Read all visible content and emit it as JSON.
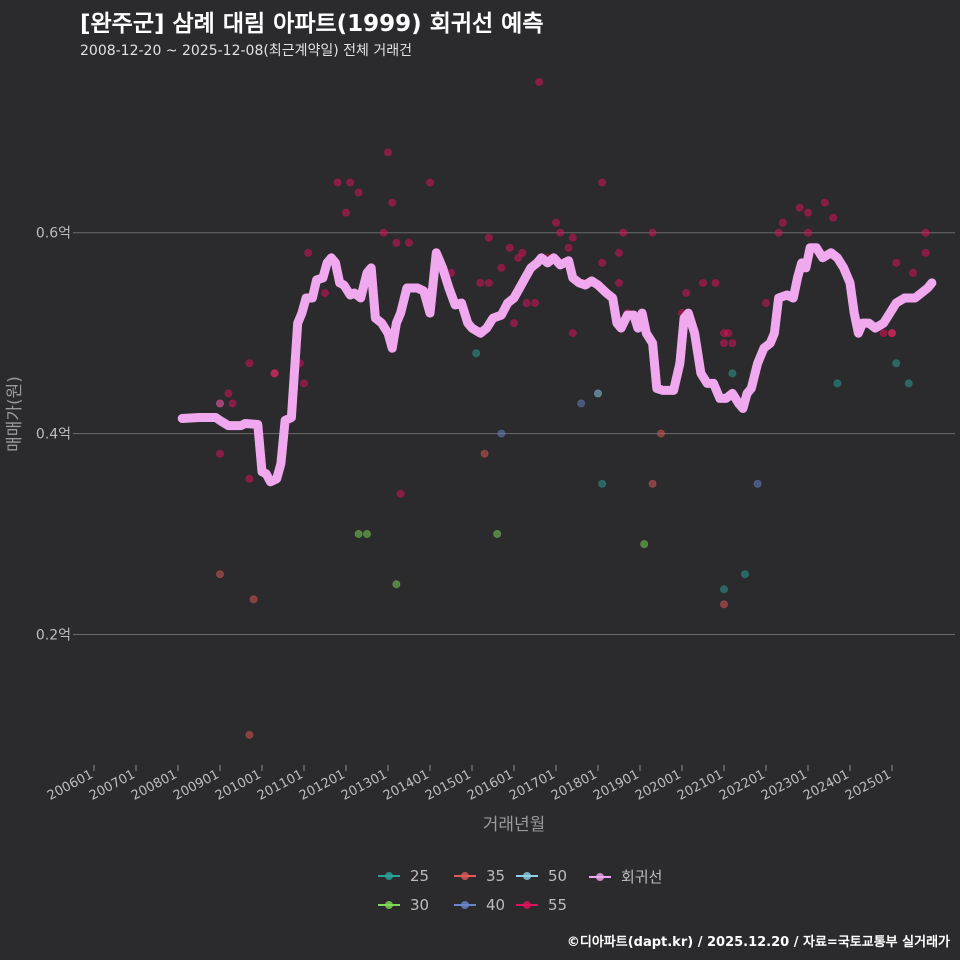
{
  "title": "[완주군] 삼례 대림 아파트(1999) 회귀선 예측",
  "subtitle": "2008-12-20 ~ 2025-12-08(최근계약일) 전체 거래건",
  "footer": "©디아파트(dapt.kr) / 2025.12.20 / 자료=국토교통부 실거래가",
  "chart_data": {
    "type": "scatter",
    "xlabel": "거래년월",
    "ylabel": "매매가(원)",
    "x_range": [
      2005.5,
      2026.5
    ],
    "ylim": [
      0.07,
      0.77
    ],
    "x_ticks": [
      {
        "value": 2006,
        "label": "200601"
      },
      {
        "value": 2007,
        "label": "200701"
      },
      {
        "value": 2008,
        "label": "200801"
      },
      {
        "value": 2009,
        "label": "200901"
      },
      {
        "value": 2010,
        "label": "201001"
      },
      {
        "value": 2011,
        "label": "201101"
      },
      {
        "value": 2012,
        "label": "201201"
      },
      {
        "value": 2013,
        "label": "201301"
      },
      {
        "value": 2014,
        "label": "201401"
      },
      {
        "value": 2015,
        "label": "201501"
      },
      {
        "value": 2016,
        "label": "201601"
      },
      {
        "value": 2017,
        "label": "201701"
      },
      {
        "value": 2018,
        "label": "201801"
      },
      {
        "value": 2019,
        "label": "201901"
      },
      {
        "value": 2020,
        "label": "202001"
      },
      {
        "value": 2021,
        "label": "202101"
      },
      {
        "value": 2022,
        "label": "202201"
      },
      {
        "value": 2023,
        "label": "202301"
      },
      {
        "value": 2024,
        "label": "202401"
      },
      {
        "value": 2025,
        "label": "202501"
      }
    ],
    "y_ticks": [
      {
        "value": 0.2,
        "label": "0.2억"
      },
      {
        "value": 0.4,
        "label": "0.4억"
      },
      {
        "value": 0.6,
        "label": "0.6억"
      }
    ],
    "legend": [
      {
        "name": "25",
        "color": "#2aa198"
      },
      {
        "name": "30",
        "color": "#7ed957"
      },
      {
        "name": "35",
        "color": "#e05a5a"
      },
      {
        "name": "40",
        "color": "#6b86c9"
      },
      {
        "name": "50",
        "color": "#8fd0e8"
      },
      {
        "name": "55",
        "color": "#e0115f"
      },
      {
        "name": "회귀선",
        "color": "#f0a8ee"
      }
    ],
    "series": [
      {
        "name": "25",
        "color": "#2aa198",
        "points": [
          [
            2015.1,
            0.48
          ],
          [
            2018.1,
            0.35
          ],
          [
            2021.2,
            0.46
          ],
          [
            2021.0,
            0.245
          ],
          [
            2021.5,
            0.26
          ],
          [
            2023.7,
            0.45
          ],
          [
            2025.1,
            0.47
          ],
          [
            2025.4,
            0.45
          ]
        ]
      },
      {
        "name": "30",
        "color": "#7ed957",
        "points": [
          [
            2012.3,
            0.3
          ],
          [
            2012.5,
            0.3
          ],
          [
            2013.2,
            0.25
          ],
          [
            2015.6,
            0.3
          ],
          [
            2019.1,
            0.29
          ]
        ]
      },
      {
        "name": "35",
        "color": "#e05a5a",
        "points": [
          [
            2009.0,
            0.26
          ],
          [
            2009.8,
            0.235
          ],
          [
            2009.7,
            0.1
          ],
          [
            2010.3,
            0.46
          ],
          [
            2015.3,
            0.38
          ],
          [
            2019.3,
            0.35
          ],
          [
            2019.5,
            0.4
          ],
          [
            2021.0,
            0.23
          ],
          [
            2025.0,
            0.5
          ]
        ]
      },
      {
        "name": "40",
        "color": "#6b86c9",
        "points": [
          [
            2015.7,
            0.4
          ],
          [
            2017.6,
            0.43
          ],
          [
            2021.8,
            0.35
          ]
        ]
      },
      {
        "name": "50",
        "color": "#8fd0e8",
        "points": [
          [
            2009.0,
            0.43
          ],
          [
            2018.0,
            0.44
          ]
        ]
      },
      {
        "name": "55",
        "color": "#e0115f",
        "points": [
          [
            2009.0,
            0.43
          ],
          [
            2009.0,
            0.38
          ],
          [
            2009.2,
            0.44
          ],
          [
            2009.3,
            0.43
          ],
          [
            2009.7,
            0.47
          ],
          [
            2009.7,
            0.355
          ],
          [
            2010.3,
            0.46
          ],
          [
            2010.9,
            0.47
          ],
          [
            2011.0,
            0.45
          ],
          [
            2011.1,
            0.58
          ],
          [
            2011.5,
            0.54
          ],
          [
            2011.8,
            0.65
          ],
          [
            2012.0,
            0.62
          ],
          [
            2012.1,
            0.65
          ],
          [
            2012.3,
            0.64
          ],
          [
            2012.5,
            0.55
          ],
          [
            2012.9,
            0.6
          ],
          [
            2013.0,
            0.68
          ],
          [
            2013.1,
            0.63
          ],
          [
            2013.2,
            0.59
          ],
          [
            2013.5,
            0.59
          ],
          [
            2013.3,
            0.34
          ],
          [
            2014.0,
            0.65
          ],
          [
            2014.2,
            0.57
          ],
          [
            2014.5,
            0.56
          ],
          [
            2015.2,
            0.55
          ],
          [
            2015.4,
            0.55
          ],
          [
            2015.4,
            0.595
          ],
          [
            2015.7,
            0.565
          ],
          [
            2015.9,
            0.585
          ],
          [
            2016.0,
            0.51
          ],
          [
            2016.1,
            0.575
          ],
          [
            2016.2,
            0.58
          ],
          [
            2016.3,
            0.53
          ],
          [
            2016.5,
            0.53
          ],
          [
            2016.6,
            0.75
          ],
          [
            2016.8,
            0.575
          ],
          [
            2017.0,
            0.61
          ],
          [
            2017.1,
            0.6
          ],
          [
            2017.3,
            0.585
          ],
          [
            2017.4,
            0.5
          ],
          [
            2017.4,
            0.595
          ],
          [
            2017.7,
            0.55
          ],
          [
            2018.1,
            0.57
          ],
          [
            2018.1,
            0.65
          ],
          [
            2018.5,
            0.55
          ],
          [
            2018.5,
            0.58
          ],
          [
            2018.6,
            0.6
          ],
          [
            2018.7,
            0.52
          ],
          [
            2019.3,
            0.6
          ],
          [
            2020.0,
            0.52
          ],
          [
            2020.1,
            0.54
          ],
          [
            2020.5,
            0.55
          ],
          [
            2020.8,
            0.55
          ],
          [
            2021.0,
            0.5
          ],
          [
            2021.0,
            0.49
          ],
          [
            2021.1,
            0.5
          ],
          [
            2021.2,
            0.49
          ],
          [
            2022.0,
            0.53
          ],
          [
            2022.3,
            0.6
          ],
          [
            2022.4,
            0.61
          ],
          [
            2022.8,
            0.625
          ],
          [
            2023.0,
            0.6
          ],
          [
            2023.0,
            0.62
          ],
          [
            2023.4,
            0.63
          ],
          [
            2023.6,
            0.615
          ],
          [
            2024.8,
            0.5
          ],
          [
            2025.0,
            0.5
          ],
          [
            2025.1,
            0.57
          ],
          [
            2025.5,
            0.56
          ],
          [
            2025.8,
            0.6
          ],
          [
            2025.8,
            0.58
          ]
        ]
      }
    ],
    "regression": {
      "name": "회귀선",
      "color": "#f0a8ee",
      "points": [
        [
          2008.1,
          0.415
        ],
        [
          2008.5,
          0.416
        ],
        [
          2008.9,
          0.416
        ],
        [
          2009.0,
          0.413
        ],
        [
          2009.2,
          0.408
        ],
        [
          2009.5,
          0.408
        ],
        [
          2009.6,
          0.41
        ],
        [
          2009.9,
          0.409
        ],
        [
          2010.0,
          0.362
        ],
        [
          2010.1,
          0.36
        ],
        [
          2010.2,
          0.352
        ],
        [
          2010.35,
          0.355
        ],
        [
          2010.45,
          0.37
        ],
        [
          2010.55,
          0.413
        ],
        [
          2010.7,
          0.416
        ],
        [
          2010.85,
          0.51
        ],
        [
          2010.95,
          0.52
        ],
        [
          2011.05,
          0.535
        ],
        [
          2011.2,
          0.535
        ],
        [
          2011.3,
          0.553
        ],
        [
          2011.45,
          0.555
        ],
        [
          2011.55,
          0.57
        ],
        [
          2011.65,
          0.575
        ],
        [
          2011.75,
          0.57
        ],
        [
          2011.85,
          0.55
        ],
        [
          2011.95,
          0.548
        ],
        [
          2012.1,
          0.538
        ],
        [
          2012.2,
          0.54
        ],
        [
          2012.35,
          0.535
        ],
        [
          2012.5,
          0.56
        ],
        [
          2012.6,
          0.565
        ],
        [
          2012.7,
          0.515
        ],
        [
          2012.85,
          0.51
        ],
        [
          2013.0,
          0.5
        ],
        [
          2013.1,
          0.485
        ],
        [
          2013.2,
          0.51
        ],
        [
          2013.3,
          0.52
        ],
        [
          2013.45,
          0.545
        ],
        [
          2013.7,
          0.545
        ],
        [
          2013.85,
          0.542
        ],
        [
          2014.0,
          0.52
        ],
        [
          2014.15,
          0.58
        ],
        [
          2014.3,
          0.565
        ],
        [
          2014.45,
          0.545
        ],
        [
          2014.6,
          0.528
        ],
        [
          2014.75,
          0.53
        ],
        [
          2014.9,
          0.51
        ],
        [
          2015.0,
          0.505
        ],
        [
          2015.2,
          0.5
        ],
        [
          2015.35,
          0.505
        ],
        [
          2015.5,
          0.515
        ],
        [
          2015.7,
          0.518
        ],
        [
          2015.85,
          0.53
        ],
        [
          2016.0,
          0.535
        ],
        [
          2016.2,
          0.55
        ],
        [
          2016.4,
          0.565
        ],
        [
          2016.55,
          0.57
        ],
        [
          2016.65,
          0.575
        ],
        [
          2016.8,
          0.57
        ],
        [
          2016.95,
          0.575
        ],
        [
          2017.1,
          0.568
        ],
        [
          2017.3,
          0.572
        ],
        [
          2017.4,
          0.555
        ],
        [
          2017.55,
          0.55
        ],
        [
          2017.7,
          0.548
        ],
        [
          2017.85,
          0.552
        ],
        [
          2018.0,
          0.548
        ],
        [
          2018.2,
          0.54
        ],
        [
          2018.35,
          0.535
        ],
        [
          2018.45,
          0.51
        ],
        [
          2018.55,
          0.505
        ],
        [
          2018.7,
          0.518
        ],
        [
          2018.85,
          0.518
        ],
        [
          2018.95,
          0.505
        ],
        [
          2019.05,
          0.52
        ],
        [
          2019.15,
          0.5
        ],
        [
          2019.3,
          0.49
        ],
        [
          2019.4,
          0.445
        ],
        [
          2019.55,
          0.443
        ],
        [
          2019.8,
          0.443
        ],
        [
          2019.95,
          0.47
        ],
        [
          2020.05,
          0.515
        ],
        [
          2020.15,
          0.52
        ],
        [
          2020.3,
          0.5
        ],
        [
          2020.45,
          0.46
        ],
        [
          2020.6,
          0.45
        ],
        [
          2020.75,
          0.45
        ],
        [
          2020.9,
          0.435
        ],
        [
          2021.05,
          0.435
        ],
        [
          2021.2,
          0.44
        ],
        [
          2021.35,
          0.43
        ],
        [
          2021.45,
          0.425
        ],
        [
          2021.55,
          0.44
        ],
        [
          2021.65,
          0.445
        ],
        [
          2021.8,
          0.47
        ],
        [
          2021.95,
          0.485
        ],
        [
          2022.1,
          0.49
        ],
        [
          2022.2,
          0.5
        ],
        [
          2022.3,
          0.535
        ],
        [
          2022.5,
          0.538
        ],
        [
          2022.65,
          0.535
        ],
        [
          2022.75,
          0.555
        ],
        [
          2022.85,
          0.57
        ],
        [
          2022.95,
          0.565
        ],
        [
          2023.05,
          0.585
        ],
        [
          2023.2,
          0.585
        ],
        [
          2023.35,
          0.575
        ],
        [
          2023.55,
          0.58
        ],
        [
          2023.7,
          0.575
        ],
        [
          2023.85,
          0.565
        ],
        [
          2024.0,
          0.55
        ],
        [
          2024.1,
          0.52
        ],
        [
          2024.2,
          0.5
        ],
        [
          2024.3,
          0.51
        ],
        [
          2024.45,
          0.51
        ],
        [
          2024.6,
          0.505
        ],
        [
          2024.8,
          0.51
        ],
        [
          2024.95,
          0.52
        ],
        [
          2025.1,
          0.53
        ],
        [
          2025.3,
          0.535
        ],
        [
          2025.55,
          0.535
        ],
        [
          2025.7,
          0.54
        ],
        [
          2025.85,
          0.545
        ],
        [
          2025.95,
          0.55
        ]
      ]
    }
  }
}
